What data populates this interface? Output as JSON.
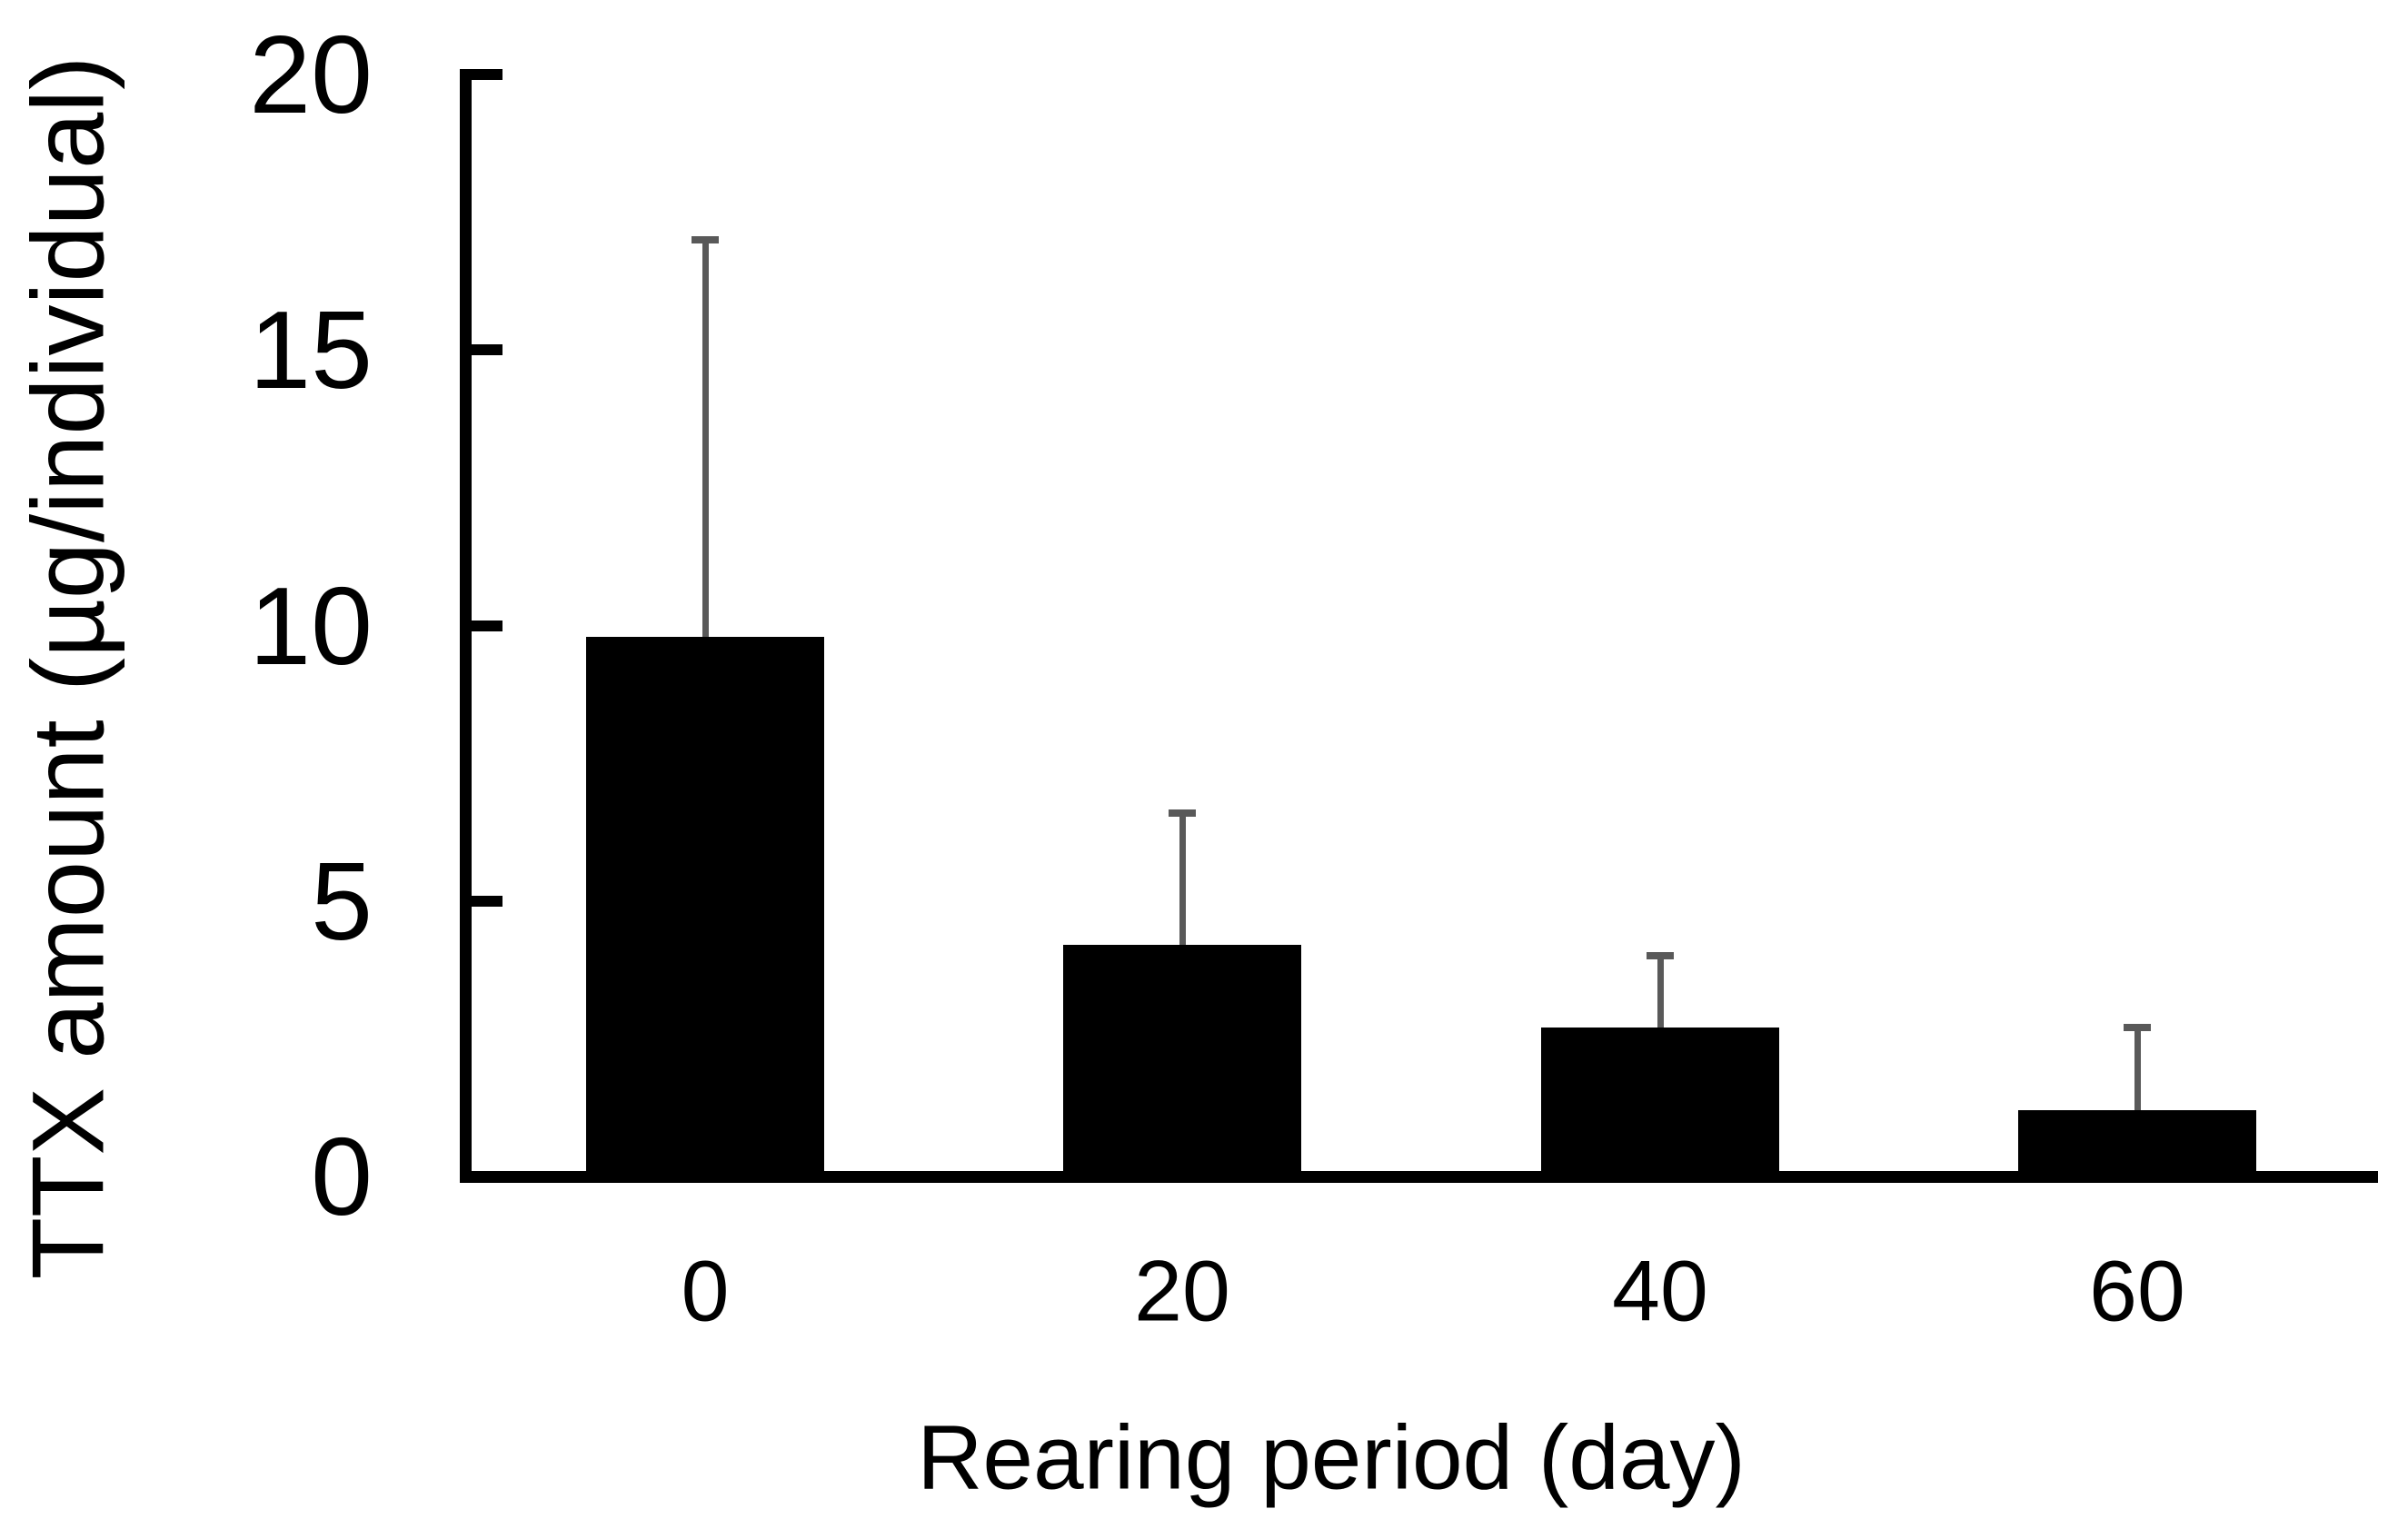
{
  "chart_data": {
    "type": "bar",
    "title": "",
    "categories": [
      "0",
      "20",
      "40",
      "60"
    ],
    "values": [
      9.8,
      4.2,
      2.7,
      1.2
    ],
    "error_upper": [
      7.2,
      2.4,
      1.3,
      1.5
    ],
    "xlabel": "Rearing period (day)",
    "ylabel": "TTX amount (µg/individual)",
    "ylim": [
      0,
      20
    ],
    "yticks": [
      0,
      5,
      10,
      15,
      20
    ],
    "bar_color": "#000000",
    "error_bar_color": "#595959",
    "axis_color": "#000000",
    "background_color": "#ffffff",
    "grid": false,
    "legend_position": "none"
  }
}
